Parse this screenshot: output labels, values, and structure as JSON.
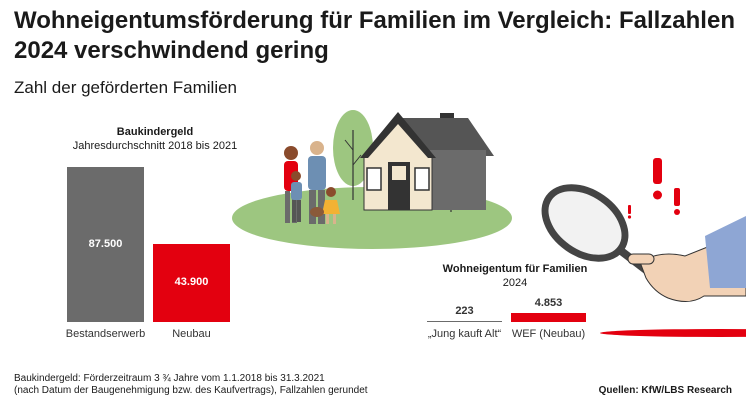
{
  "header": {
    "title": "Wohneigentumsförderung für Familien im Vergleich: Fallzahlen 2024 verschwindend gering",
    "subtitle": "Zahl der geförderten Familien"
  },
  "chart_data": [
    {
      "type": "bar",
      "title": "Baukindergeld",
      "subtitle": "Jahresdurchschnitt 2018 bis 2021",
      "categories": [
        "Bestandserwerb",
        "Neubau"
      ],
      "values": [
        87500,
        43900
      ],
      "value_labels": [
        "87.500",
        "43.900"
      ],
      "colors": [
        "#6b6b6b",
        "#e3000f"
      ]
    },
    {
      "type": "bar",
      "title": "Wohneigentum für Familien",
      "subtitle": "2024",
      "categories": [
        "„Jung kauft Alt“",
        "WEF (Neubau)"
      ],
      "values": [
        223,
        4853
      ],
      "value_labels": [
        "223",
        "4.853"
      ],
      "colors": [
        "#6b6b6b",
        "#e3000f"
      ]
    }
  ],
  "footnote": {
    "line1": "Baukindergeld: Förderzeitraum 3 ¾ Jahre vom 1.1.2018 bis 31.3.2021",
    "line2": "(nach Datum der Baugenehmigung bzw. des Kaufvertrags), Fallzahlen gerundet"
  },
  "source": "Quellen: KfW/LBS Research",
  "colors": {
    "gray": "#6b6b6b",
    "red": "#e3000f",
    "green": "#9dc680"
  },
  "illustration": {
    "icons": [
      "family-icon",
      "house-icon",
      "magnifier-icon",
      "exclamation-icon"
    ]
  }
}
